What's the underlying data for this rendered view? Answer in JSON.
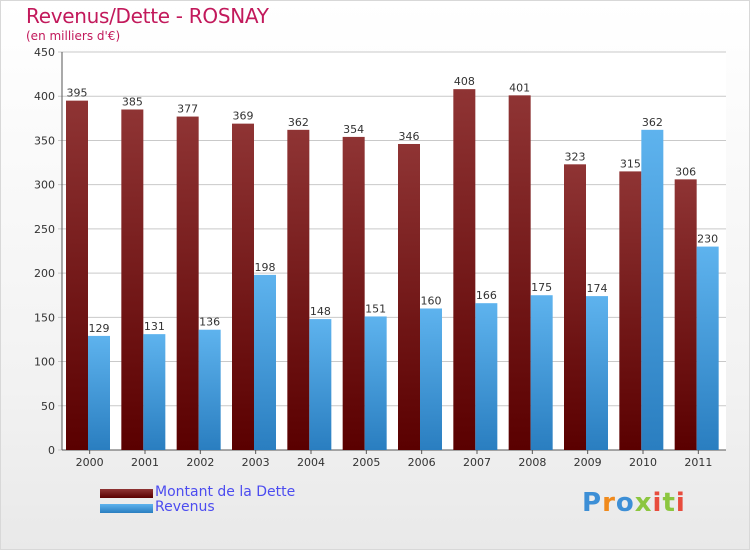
{
  "title": "Revenus/Dette - ROSNAY",
  "subtitle": "(en milliers d'€)",
  "colors": {
    "dette_light": "#8f3434",
    "dette_dark": "#5a0000",
    "revenus_light": "#5eb3ee",
    "revenus_dark": "#2a7ec0"
  },
  "legend": {
    "dette": "Montant de la Dette",
    "revenus": "Revenus"
  },
  "logo": {
    "text": "Proxiti",
    "letters": [
      "P",
      "r",
      "o",
      "x",
      "i",
      "t",
      "i"
    ],
    "colors": [
      "#3d8fd6",
      "#f08a1c",
      "#3d8fd6",
      "#8cc63f",
      "#e84c3d",
      "#8cc63f",
      "#e84c3d"
    ]
  },
  "chart_data": {
    "type": "bar",
    "categories": [
      "2000",
      "2001",
      "2002",
      "2003",
      "2004",
      "2005",
      "2006",
      "2007",
      "2008",
      "2009",
      "2010",
      "2011"
    ],
    "series": [
      {
        "name": "Montant de la Dette",
        "values": [
          395,
          385,
          377,
          369,
          362,
          354,
          346,
          408,
          401,
          323,
          315,
          306
        ]
      },
      {
        "name": "Revenus",
        "values": [
          129,
          131,
          136,
          198,
          148,
          151,
          160,
          166,
          175,
          174,
          362,
          230
        ]
      }
    ],
    "title": "Revenus/Dette - ROSNAY",
    "subtitle": "(en milliers d'€)",
    "ylim": [
      0,
      450
    ],
    "yticks": [
      0,
      50,
      100,
      150,
      200,
      250,
      300,
      350,
      400,
      450
    ],
    "grid": true,
    "legend": "bottom-left"
  }
}
